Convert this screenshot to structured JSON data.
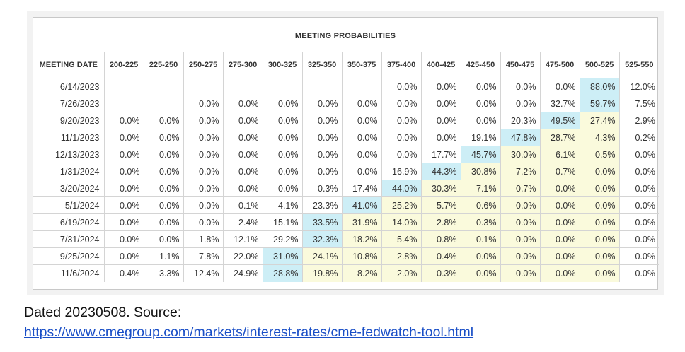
{
  "title": "MEETING PROBABILITIES",
  "columns": [
    "MEETING DATE",
    "200-225",
    "225-250",
    "250-275",
    "275-300",
    "300-325",
    "325-350",
    "350-375",
    "375-400",
    "400-425",
    "425-450",
    "450-475",
    "475-500",
    "500-525",
    "525-550"
  ],
  "rows": [
    {
      "date": "6/14/2023",
      "values": [
        "",
        "",
        "",
        "",
        "",
        "",
        "",
        "0.0%",
        "0.0%",
        "0.0%",
        "0.0%",
        "0.0%",
        "88.0%",
        "12.0%"
      ]
    },
    {
      "date": "7/26/2023",
      "values": [
        "",
        "",
        "0.0%",
        "0.0%",
        "0.0%",
        "0.0%",
        "0.0%",
        "0.0%",
        "0.0%",
        "0.0%",
        "0.0%",
        "32.7%",
        "59.7%",
        "7.5%"
      ]
    },
    {
      "date": "9/20/2023",
      "values": [
        "0.0%",
        "0.0%",
        "0.0%",
        "0.0%",
        "0.0%",
        "0.0%",
        "0.0%",
        "0.0%",
        "0.0%",
        "0.0%",
        "20.3%",
        "49.5%",
        "27.4%",
        "2.9%"
      ]
    },
    {
      "date": "11/1/2023",
      "values": [
        "0.0%",
        "0.0%",
        "0.0%",
        "0.0%",
        "0.0%",
        "0.0%",
        "0.0%",
        "0.0%",
        "0.0%",
        "19.1%",
        "47.8%",
        "28.7%",
        "4.3%",
        "0.2%"
      ]
    },
    {
      "date": "12/13/2023",
      "values": [
        "0.0%",
        "0.0%",
        "0.0%",
        "0.0%",
        "0.0%",
        "0.0%",
        "0.0%",
        "0.0%",
        "17.7%",
        "45.7%",
        "30.0%",
        "6.1%",
        "0.5%",
        "0.0%"
      ]
    },
    {
      "date": "1/31/2024",
      "values": [
        "0.0%",
        "0.0%",
        "0.0%",
        "0.0%",
        "0.0%",
        "0.0%",
        "0.0%",
        "16.9%",
        "44.3%",
        "30.8%",
        "7.2%",
        "0.7%",
        "0.0%",
        "0.0%"
      ]
    },
    {
      "date": "3/20/2024",
      "values": [
        "0.0%",
        "0.0%",
        "0.0%",
        "0.0%",
        "0.0%",
        "0.3%",
        "17.4%",
        "44.0%",
        "30.3%",
        "7.1%",
        "0.7%",
        "0.0%",
        "0.0%",
        "0.0%"
      ]
    },
    {
      "date": "5/1/2024",
      "values": [
        "0.0%",
        "0.0%",
        "0.0%",
        "0.1%",
        "4.1%",
        "23.3%",
        "41.0%",
        "25.2%",
        "5.7%",
        "0.6%",
        "0.0%",
        "0.0%",
        "0.0%",
        "0.0%"
      ]
    },
    {
      "date": "6/19/2024",
      "values": [
        "0.0%",
        "0.0%",
        "0.0%",
        "2.4%",
        "15.1%",
        "33.5%",
        "31.9%",
        "14.0%",
        "2.8%",
        "0.3%",
        "0.0%",
        "0.0%",
        "0.0%",
        "0.0%"
      ]
    },
    {
      "date": "7/31/2024",
      "values": [
        "0.0%",
        "0.0%",
        "1.8%",
        "12.1%",
        "29.2%",
        "32.3%",
        "18.2%",
        "5.4%",
        "0.8%",
        "0.1%",
        "0.0%",
        "0.0%",
        "0.0%",
        "0.0%"
      ]
    },
    {
      "date": "9/25/2024",
      "values": [
        "0.0%",
        "1.1%",
        "7.8%",
        "22.0%",
        "31.0%",
        "24.1%",
        "10.8%",
        "2.8%",
        "0.4%",
        "0.0%",
        "0.0%",
        "0.0%",
        "0.0%",
        "0.0%"
      ]
    },
    {
      "date": "11/6/2024",
      "values": [
        "0.4%",
        "3.3%",
        "12.4%",
        "24.9%",
        "28.8%",
        "19.8%",
        "8.2%",
        "2.0%",
        "0.3%",
        "0.0%",
        "0.0%",
        "0.0%",
        "0.0%",
        "0.0%"
      ]
    }
  ],
  "colors": {
    "max_highlight": "#cdeef6",
    "near_highlight": "#fafadc",
    "link": "#1a4fc7"
  },
  "footer": {
    "caption": "Dated 20230508. Source:",
    "link": "https://www.cmegroup.com/markets/interest-rates/cme-fedwatch-tool.html"
  }
}
